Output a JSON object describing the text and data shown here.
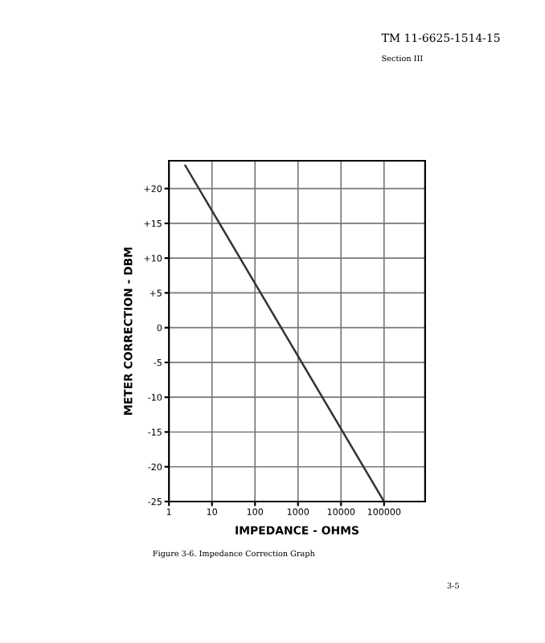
{
  "chart_data": {
    "type": "line",
    "x": [
      2.4,
      100000
    ],
    "series": [
      {
        "color": "#333333",
        "values": [
          23.3,
          -25
        ]
      }
    ],
    "xlabel": "IMPEDANCE - OHMS",
    "ylabel": "METER CORRECTION - DBM",
    "log": "x",
    "xlim": [
      1,
      900000
    ],
    "xticks": [
      1,
      10,
      100,
      1000,
      10000,
      100000
    ],
    "ylim": [
      -25,
      24
    ],
    "yticks": [
      {
        "value": 20,
        "label": "+20"
      },
      {
        "value": 15,
        "label": "+15"
      },
      {
        "value": 10,
        "label": "+10"
      },
      {
        "value": 5,
        "label": "+5"
      },
      0,
      -5,
      -10,
      -15,
      -20,
      -25
    ],
    "grid": true,
    "annotations": [
      "TM 11-6625-1514-15",
      "Section III",
      "Figure 3-6. Impedance Correction Graph",
      "3-5"
    ]
  }
}
